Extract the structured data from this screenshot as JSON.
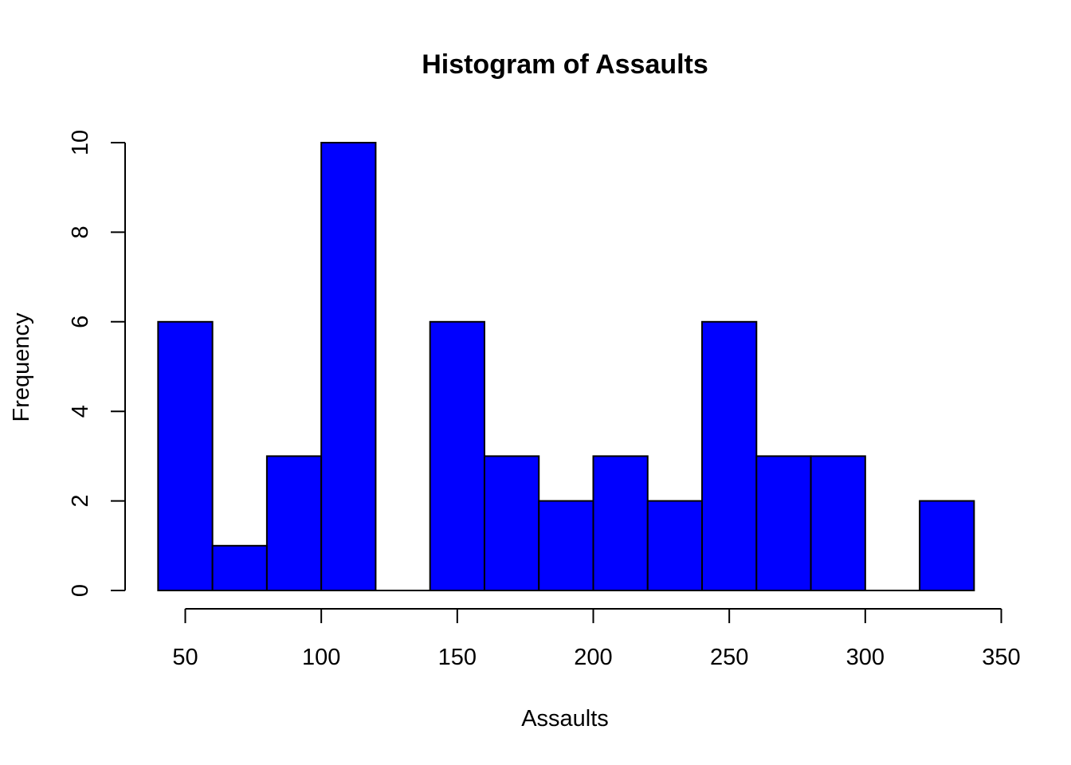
{
  "chart_data": {
    "type": "bar",
    "title": "Histogram of Assaults",
    "xlabel": "Assaults",
    "ylabel": "Frequency",
    "bar_color": "#0000ff",
    "bins": [
      {
        "start": 40,
        "end": 60,
        "count": 6
      },
      {
        "start": 60,
        "end": 80,
        "count": 1
      },
      {
        "start": 80,
        "end": 100,
        "count": 3
      },
      {
        "start": 100,
        "end": 120,
        "count": 10
      },
      {
        "start": 120,
        "end": 140,
        "count": 0
      },
      {
        "start": 140,
        "end": 160,
        "count": 6
      },
      {
        "start": 160,
        "end": 180,
        "count": 3
      },
      {
        "start": 180,
        "end": 200,
        "count": 2
      },
      {
        "start": 200,
        "end": 220,
        "count": 3
      },
      {
        "start": 220,
        "end": 240,
        "count": 2
      },
      {
        "start": 240,
        "end": 260,
        "count": 6
      },
      {
        "start": 260,
        "end": 280,
        "count": 3
      },
      {
        "start": 280,
        "end": 300,
        "count": 3
      },
      {
        "start": 300,
        "end": 320,
        "count": 0
      },
      {
        "start": 320,
        "end": 340,
        "count": 2
      }
    ],
    "xticks": [
      "50",
      "100",
      "150",
      "200",
      "250",
      "300",
      "350"
    ],
    "yticks": [
      "0",
      "2",
      "4",
      "6",
      "8",
      "10"
    ],
    "xlim": [
      40,
      340
    ],
    "ylim": [
      0,
      10
    ],
    "grid": false,
    "legend": "none"
  }
}
